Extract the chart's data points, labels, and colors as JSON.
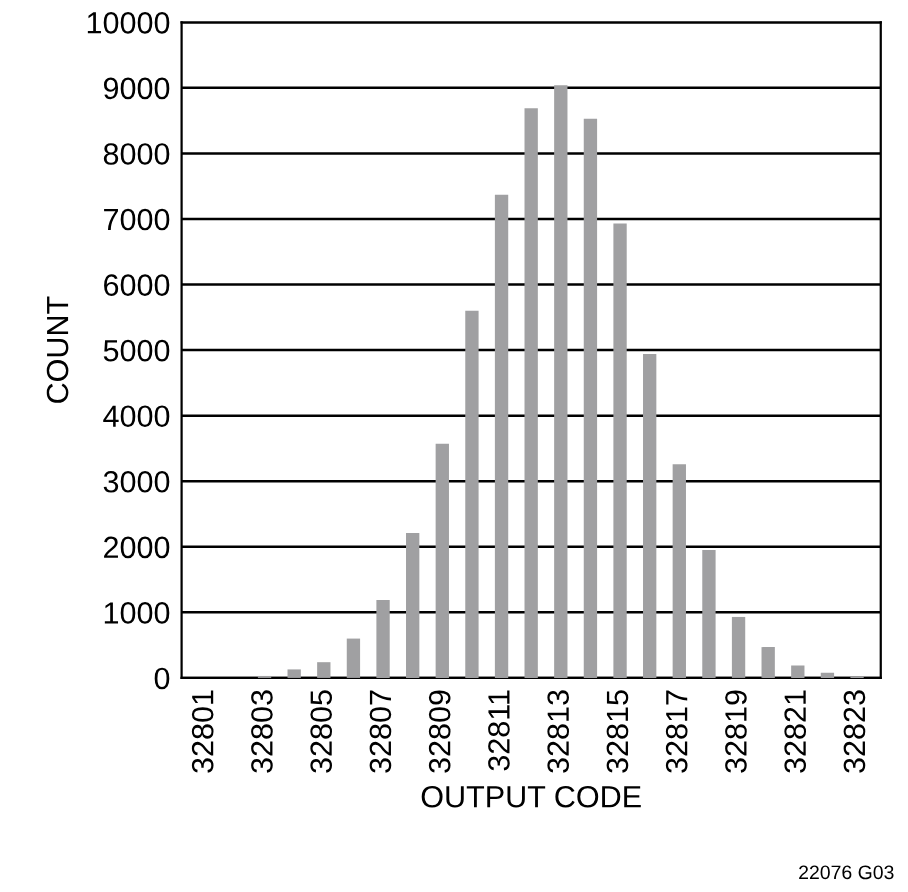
{
  "chart_data": {
    "type": "bar",
    "xlabel": "OUTPUT CODE",
    "ylabel": "COUNT",
    "categories": [
      "32801",
      null,
      "32803",
      null,
      "32805",
      null,
      "32807",
      null,
      "32809",
      null,
      "32811",
      null,
      "32813",
      null,
      "32815",
      null,
      "32817",
      null,
      "32819",
      null,
      "32821",
      null,
      "32823"
    ],
    "values": [
      0,
      0,
      30,
      130,
      240,
      600,
      1190,
      2210,
      3570,
      5600,
      7370,
      8690,
      9040,
      8530,
      6930,
      4940,
      3260,
      1950,
      930,
      470,
      190,
      80,
      20
    ],
    "color": "#a0a0a2",
    "ylim": [
      0,
      10000
    ],
    "yticks": [
      0,
      1000,
      2000,
      3000,
      4000,
      5000,
      6000,
      7000,
      8000,
      9000,
      10000
    ],
    "grid": "y",
    "annotations": [
      "22076 G03"
    ]
  }
}
